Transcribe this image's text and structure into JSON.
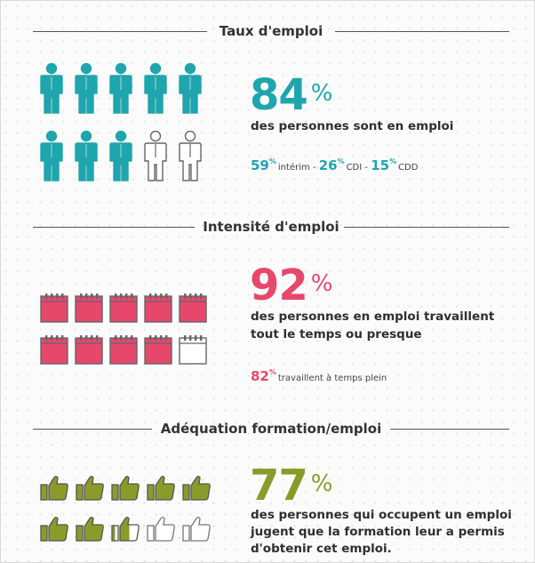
{
  "colors": {
    "teal": "#1fa5ad",
    "pink": "#e8476c",
    "olive": "#8a9b2a"
  },
  "employment_rate": {
    "title": "Taux d'emploi",
    "percent": "84",
    "percent_sign": "%",
    "description": "des personnes sont en emploi",
    "breakdown": [
      {
        "value": "59",
        "sign": "%",
        "label": "intérim"
      },
      {
        "value": "26",
        "sign": "%",
        "label": "CDI"
      },
      {
        "value": "15",
        "sign": "%",
        "label": "CDD"
      }
    ],
    "separator": " - ",
    "icon": "person-icon",
    "filled_icons": 8,
    "total_icons": 10
  },
  "employment_intensity": {
    "title": "Intensité d'emploi",
    "percent": "92",
    "percent_sign": "%",
    "description_line1": "des personnes en emploi travaillent",
    "description_line2": "tout le temps ou presque",
    "secondary_value": "82",
    "secondary_sign": "%",
    "secondary_label": "travaillent à temps plein",
    "icon": "calendar-icon",
    "filled_icons": 9,
    "total_icons": 10
  },
  "training_match": {
    "title": "Adéquation formation/emploi",
    "percent": "77",
    "percent_sign": "%",
    "description_line1": "des personnes qui occupent un emploi",
    "description_line2": "jugent que la formation leur a permis",
    "description_line3": "d'obtenir cet emploi.",
    "icon": "thumbs-up-icon",
    "filled_icons": 7.5,
    "total_icons": 10
  }
}
